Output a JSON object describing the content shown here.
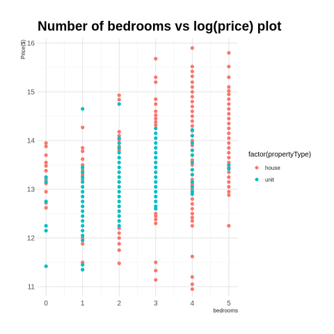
{
  "chart_data": {
    "type": "scatter",
    "title": "Number of bedrooms vs log(price) plot",
    "xlabel": "bedrooms",
    "ylabel": "Price($)",
    "xlim": [
      -0.25,
      5.25
    ],
    "ylim": [
      10.8,
      16.1
    ],
    "x_ticks": [
      0,
      1,
      2,
      3,
      4,
      5
    ],
    "y_ticks": [
      11,
      12,
      13,
      14,
      15,
      16
    ],
    "grid": true,
    "legend": {
      "title": "factor(propertyType)",
      "position": "right",
      "entries": [
        {
          "label": "house",
          "color": "#F8766D"
        },
        {
          "label": "unit",
          "color": "#00BFC4"
        }
      ]
    },
    "series": [
      {
        "name": "house",
        "color": "#F8766D",
        "points": [
          [
            0,
            13.95
          ],
          [
            0,
            13.88
          ],
          [
            0,
            13.7
          ],
          [
            0,
            13.55
          ],
          [
            0,
            13.48
          ],
          [
            0,
            13.38
          ],
          [
            0,
            13.2
          ],
          [
            0,
            13.12
          ],
          [
            0,
            12.95
          ],
          [
            0,
            12.72
          ],
          [
            0,
            12.62
          ],
          [
            1,
            14.27
          ],
          [
            1,
            13.85
          ],
          [
            1,
            13.78
          ],
          [
            1,
            13.62
          ],
          [
            1,
            13.5
          ],
          [
            1,
            13.4
          ],
          [
            1,
            13.3
          ],
          [
            1,
            13.2
          ],
          [
            1,
            12.0
          ],
          [
            1,
            11.88
          ],
          [
            1,
            11.5
          ],
          [
            1,
            11.35
          ],
          [
            2,
            14.93
          ],
          [
            2,
            14.84
          ],
          [
            2,
            14.18
          ],
          [
            2,
            14.1
          ],
          [
            2,
            14.02
          ],
          [
            2,
            13.95
          ],
          [
            2,
            13.88
          ],
          [
            2,
            13.8
          ],
          [
            2,
            12.2
          ],
          [
            2,
            12.1
          ],
          [
            2,
            12.0
          ],
          [
            2,
            11.88
          ],
          [
            2,
            11.75
          ],
          [
            2,
            11.48
          ],
          [
            3,
            15.68
          ],
          [
            3,
            15.3
          ],
          [
            3,
            15.2
          ],
          [
            3,
            14.85
          ],
          [
            3,
            14.75
          ],
          [
            3,
            14.6
          ],
          [
            3,
            14.52
          ],
          [
            3,
            14.45
          ],
          [
            3,
            14.38
          ],
          [
            3,
            14.32
          ],
          [
            3,
            12.5
          ],
          [
            3,
            12.45
          ],
          [
            3,
            12.38
          ],
          [
            3,
            12.3
          ],
          [
            3,
            11.5
          ],
          [
            3,
            11.33
          ],
          [
            3,
            11.14
          ],
          [
            4,
            15.9
          ],
          [
            4,
            15.52
          ],
          [
            4,
            15.42
          ],
          [
            4,
            15.32
          ],
          [
            4,
            15.2
          ],
          [
            4,
            15.1
          ],
          [
            4,
            15.0
          ],
          [
            4,
            14.9
          ],
          [
            4,
            14.8
          ],
          [
            4,
            14.7
          ],
          [
            4,
            14.6
          ],
          [
            4,
            14.5
          ],
          [
            4,
            14.4
          ],
          [
            4,
            14.3
          ],
          [
            4,
            14.2
          ],
          [
            4,
            14.1
          ],
          [
            4,
            14.0
          ],
          [
            4,
            13.9
          ],
          [
            4,
            13.8
          ],
          [
            4,
            13.7
          ],
          [
            4,
            13.6
          ],
          [
            4,
            13.5
          ],
          [
            4,
            13.4
          ],
          [
            4,
            13.3
          ],
          [
            4,
            13.2
          ],
          [
            4,
            13.1
          ],
          [
            4,
            13.0
          ],
          [
            4,
            12.9
          ],
          [
            4,
            12.8
          ],
          [
            4,
            12.7
          ],
          [
            4,
            12.6
          ],
          [
            4,
            12.5
          ],
          [
            4,
            12.42
          ],
          [
            4,
            12.35
          ],
          [
            4,
            12.25
          ],
          [
            4,
            11.62
          ],
          [
            4,
            11.2
          ],
          [
            4,
            11.05
          ],
          [
            4,
            10.95
          ],
          [
            5,
            15.8
          ],
          [
            5,
            15.52
          ],
          [
            5,
            15.3
          ],
          [
            5,
            15.1
          ],
          [
            5,
            15.02
          ],
          [
            5,
            14.95
          ],
          [
            5,
            14.85
          ],
          [
            5,
            14.75
          ],
          [
            5,
            14.65
          ],
          [
            5,
            14.55
          ],
          [
            5,
            14.45
          ],
          [
            5,
            14.35
          ],
          [
            5,
            14.25
          ],
          [
            5,
            14.15
          ],
          [
            5,
            14.05
          ],
          [
            5,
            13.95
          ],
          [
            5,
            13.85
          ],
          [
            5,
            13.75
          ],
          [
            5,
            13.65
          ],
          [
            5,
            13.55
          ],
          [
            5,
            13.45
          ],
          [
            5,
            13.35
          ],
          [
            5,
            13.25
          ],
          [
            5,
            13.15
          ],
          [
            5,
            13.05
          ],
          [
            5,
            12.95
          ],
          [
            5,
            12.88
          ],
          [
            5,
            12.25
          ]
        ]
      },
      {
        "name": "unit",
        "color": "#00BFC4",
        "points": [
          [
            0,
            13.25
          ],
          [
            0,
            13.15
          ],
          [
            0,
            12.75
          ],
          [
            0,
            12.25
          ],
          [
            0,
            12.15
          ],
          [
            0,
            11.42
          ],
          [
            1,
            14.65
          ],
          [
            1,
            13.45
          ],
          [
            1,
            13.35
          ],
          [
            1,
            13.25
          ],
          [
            1,
            13.15
          ],
          [
            1,
            13.05
          ],
          [
            1,
            12.95
          ],
          [
            1,
            12.85
          ],
          [
            1,
            12.75
          ],
          [
            1,
            12.65
          ],
          [
            1,
            12.55
          ],
          [
            1,
            12.45
          ],
          [
            1,
            12.35
          ],
          [
            1,
            12.25
          ],
          [
            1,
            12.15
          ],
          [
            1,
            12.05
          ],
          [
            1,
            11.95
          ],
          [
            1,
            11.45
          ],
          [
            1,
            11.35
          ],
          [
            2,
            14.75
          ],
          [
            2,
            14.05
          ],
          [
            2,
            13.95
          ],
          [
            2,
            13.85
          ],
          [
            2,
            13.75
          ],
          [
            2,
            13.65
          ],
          [
            2,
            13.55
          ],
          [
            2,
            13.45
          ],
          [
            2,
            13.35
          ],
          [
            2,
            13.25
          ],
          [
            2,
            13.15
          ],
          [
            2,
            13.05
          ],
          [
            2,
            12.95
          ],
          [
            2,
            12.85
          ],
          [
            2,
            12.75
          ],
          [
            2,
            12.65
          ],
          [
            2,
            12.55
          ],
          [
            2,
            12.45
          ],
          [
            2,
            12.35
          ],
          [
            2,
            12.25
          ],
          [
            3,
            14.25
          ],
          [
            3,
            14.15
          ],
          [
            3,
            14.05
          ],
          [
            3,
            13.95
          ],
          [
            3,
            13.85
          ],
          [
            3,
            13.75
          ],
          [
            3,
            13.65
          ],
          [
            3,
            13.55
          ],
          [
            3,
            13.45
          ],
          [
            3,
            13.35
          ],
          [
            3,
            13.25
          ],
          [
            3,
            13.15
          ],
          [
            3,
            13.05
          ],
          [
            3,
            12.95
          ],
          [
            3,
            12.85
          ],
          [
            3,
            12.75
          ],
          [
            3,
            12.65
          ],
          [
            3,
            12.6
          ],
          [
            4,
            14.22
          ],
          [
            4,
            14.1
          ],
          [
            4,
            13.95
          ],
          [
            4,
            13.8
          ],
          [
            4,
            13.7
          ],
          [
            4,
            13.55
          ],
          [
            4,
            13.4
          ],
          [
            4,
            13.3
          ],
          [
            4,
            13.15
          ],
          [
            4,
            13.05
          ],
          [
            4,
            12.95
          ],
          [
            4,
            12.9
          ],
          [
            5,
            13.5
          ],
          [
            5,
            13.42
          ]
        ]
      }
    ]
  }
}
